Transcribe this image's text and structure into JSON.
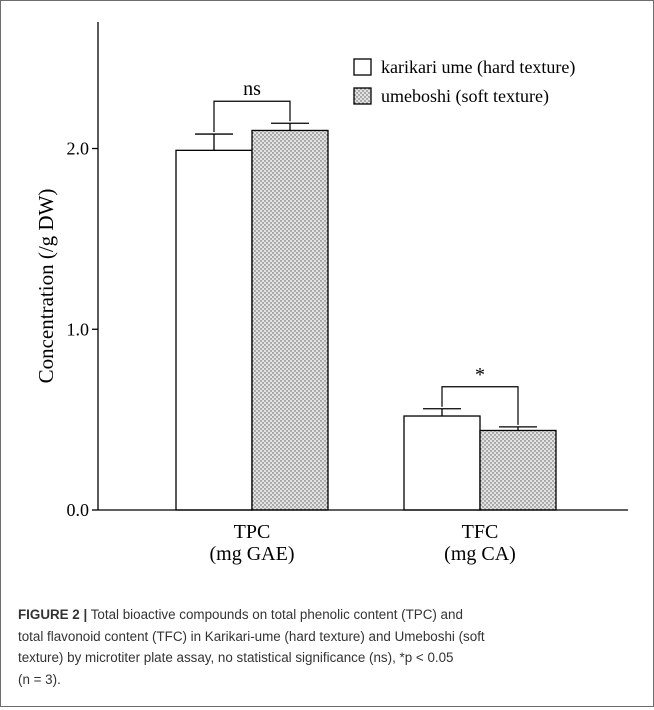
{
  "chart_data": {
    "type": "bar",
    "categories": [
      "TPC",
      "TFC"
    ],
    "category_sublabels": [
      "(mg GAE)",
      "(mg CA)"
    ],
    "series": [
      {
        "name": "karikari ume (hard texture)",
        "values": [
          1.99,
          0.52
        ],
        "errors": [
          0.09,
          0.04
        ],
        "fill": "white"
      },
      {
        "name": "umeboshi (soft texture)",
        "values": [
          2.1,
          0.44
        ],
        "errors": [
          0.04,
          0.02
        ],
        "fill": "dotted-gray"
      }
    ],
    "significance": [
      "ns",
      "*"
    ],
    "title": "",
    "xlabel": "",
    "ylabel": "Concentration (/g DW)",
    "ylim": [
      0,
      2.7
    ],
    "yticks": [
      0.0,
      1.0,
      2.0
    ],
    "ytick_labels": [
      "0.0",
      "1.0",
      "2.0"
    ],
    "legend_position": "top-right",
    "grid": false
  },
  "caption": {
    "label": "FIGURE 2 |",
    "lines": [
      "Total bioactive compounds on total phenolic content (TPC) and",
      "total flavonoid content (TFC) in Karikari-ume (hard texture) and Umeboshi (soft",
      "texture) by microtiter plate assay, no statistical significance (ns), *p < 0.05",
      "(n = 3)."
    ]
  },
  "colors": {
    "axis": "#000000",
    "dots": "#555555",
    "pattern_bg": "#e3e3e3",
    "frame": "#6d6d6d",
    "caption_text": "#333333"
  }
}
